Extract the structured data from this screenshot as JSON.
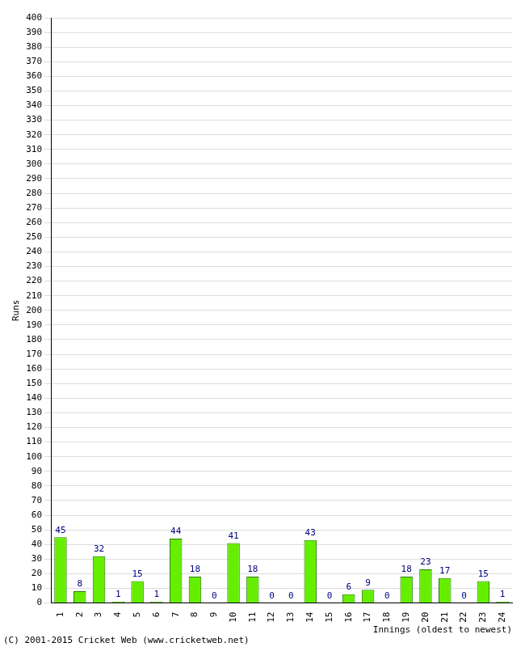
{
  "chart_data": {
    "type": "bar",
    "x_label": "Innings (oldest to newest)",
    "y_label": "Runs",
    "annotation": "(C) 2001-2015 Cricket Web (www.cricketweb.net)",
    "categories": [
      "1",
      "2",
      "3",
      "4",
      "5",
      "6",
      "7",
      "8",
      "9",
      "10",
      "11",
      "12",
      "13",
      "14",
      "15",
      "16",
      "17",
      "18",
      "19",
      "20",
      "21",
      "22",
      "23",
      "24"
    ],
    "values": [
      45,
      8,
      32,
      1,
      15,
      1,
      44,
      18,
      0,
      41,
      18,
      0,
      0,
      43,
      0,
      6,
      9,
      0,
      18,
      23,
      17,
      0,
      15,
      1
    ],
    "color": "#66ee00",
    "ylim": [
      0,
      400
    ],
    "yticks": [
      0,
      10,
      20,
      30,
      40,
      50,
      60,
      70,
      80,
      90,
      100,
      110,
      120,
      130,
      140,
      150,
      160,
      170,
      180,
      190,
      200,
      210,
      220,
      230,
      240,
      250,
      260,
      270,
      280,
      290,
      300,
      310,
      320,
      330,
      340,
      350,
      360,
      370,
      380,
      390,
      400
    ],
    "grid": true,
    "data_labels": true
  }
}
